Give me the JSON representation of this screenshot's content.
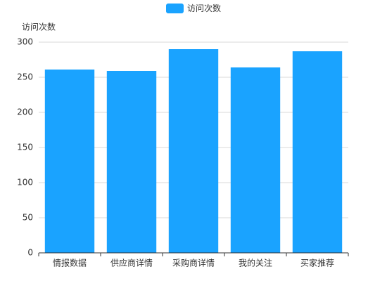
{
  "chart_data": {
    "type": "bar",
    "y_axis_label": "访问次数",
    "categories": [
      "情报数据",
      "供应商详情",
      "采购商详情",
      "我的关注",
      "买家推荐"
    ],
    "series": [
      {
        "name": "访问次数",
        "color": "#1aa3ff",
        "values": [
          261,
          259,
          290,
          264,
          287
        ]
      }
    ],
    "ylim": [
      0,
      300
    ],
    "yticks": [
      0,
      50,
      100,
      150,
      200,
      250,
      300
    ],
    "grid": true,
    "legend": "top"
  }
}
